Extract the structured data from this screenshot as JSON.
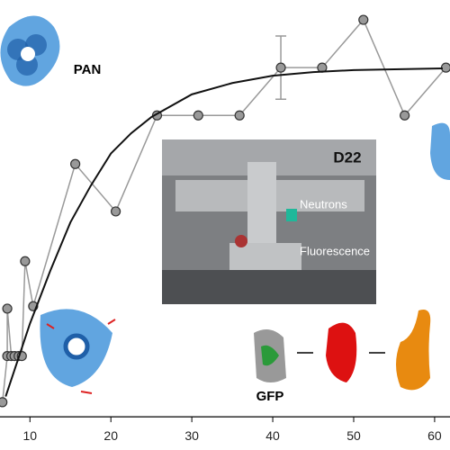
{
  "chart_data": {
    "type": "line",
    "xlim": [
      6.3,
      61.9
    ],
    "ylim": [
      -8.2,
      102.9
    ],
    "xticks": [
      10,
      20,
      30,
      40,
      50,
      60
    ],
    "series": [
      {
        "color": "#999999",
        "marker": true,
        "x": [
          6.6,
          7.2,
          7.2,
          7.7,
          8.1,
          8.6,
          9.0,
          9.4,
          10.4,
          15.6,
          20.6,
          25.7,
          30.8,
          35.9,
          41.0,
          46.1,
          51.2,
          56.3,
          61.4
        ],
        "values": [
          3.6,
          15,
          26.7,
          15,
          15,
          15,
          15,
          38.4,
          27.3,
          62.4,
          50.7,
          74.4,
          74.4,
          74.4,
          86.2,
          86.2,
          98,
          74.4,
          86.2
        ],
        "errors": [
          null,
          null,
          null,
          null,
          null,
          null,
          null,
          null,
          null,
          null,
          null,
          null,
          null,
          null,
          7.8,
          null,
          null,
          null,
          null
        ]
      },
      {
        "color": "#111111",
        "marker": false,
        "x": [
          7,
          10,
          12.5,
          15,
          17.5,
          20,
          22.5,
          25,
          30,
          35,
          40,
          45,
          50,
          55,
          61
        ],
        "values": [
          5,
          23,
          36,
          48,
          57,
          65,
          70,
          74,
          79.6,
          82.4,
          84.2,
          85.1,
          85.6,
          85.8,
          86
        ]
      }
    ],
    "annotations": [
      "PAN",
      "D22",
      "Neutrons",
      "Fluorescence",
      "GFP"
    ]
  }
}
